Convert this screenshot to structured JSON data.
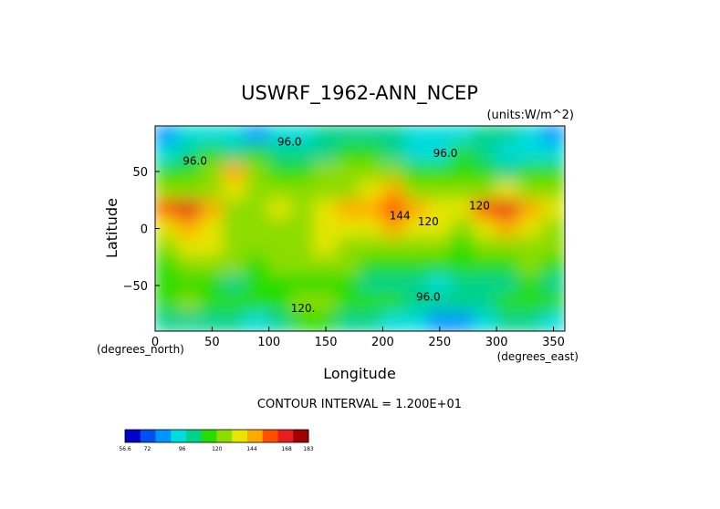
{
  "chart_data": {
    "type": "heatmap",
    "title": "USWRF_1962-ANN_NCEP",
    "units_label": "(units:W/m^2)",
    "xlabel": "Longitude",
    "ylabel": "Latitude",
    "x_unit_label": "(degrees_east)",
    "y_unit_label": "(degrees_north)",
    "xlim": [
      0,
      360
    ],
    "ylim": [
      -90,
      90
    ],
    "x_ticks": [
      0,
      50,
      100,
      150,
      200,
      250,
      300,
      350
    ],
    "y_ticks": [
      -50,
      0,
      50
    ],
    "contour_interval_text": "CONTOUR INTERVAL = 1.200E+01",
    "contour_labels": [
      {
        "text": "96.0",
        "lon": 118,
        "lat": 73
      },
      {
        "text": "96.0",
        "lon": 35,
        "lat": 56
      },
      {
        "text": "96.0",
        "lon": 255,
        "lat": 63
      },
      {
        "text": "120",
        "lon": 285,
        "lat": 17
      },
      {
        "text": "120",
        "lon": 240,
        "lat": 3
      },
      {
        "text": "144",
        "lon": 215,
        "lat": 8
      },
      {
        "text": "96.0",
        "lon": 240,
        "lat": -63
      },
      {
        "text": "120.",
        "lon": 130,
        "lat": -73
      }
    ],
    "colorbar": {
      "ticks": [
        "56.6",
        "72",
        "96",
        "120",
        "144",
        "168",
        "183"
      ],
      "tick_values": [
        56.6,
        72,
        96,
        120,
        144,
        168,
        183
      ],
      "colors": [
        "#0000c8",
        "#0050f0",
        "#0096ff",
        "#00dcdc",
        "#00d28c",
        "#28dc00",
        "#8cdc00",
        "#e6e600",
        "#ffaa00",
        "#ff5000",
        "#e61e1e",
        "#a00000"
      ]
    },
    "grid": [
      [
        86,
        90,
        95,
        92,
        88,
        98,
        95,
        100,
        108,
        104,
        100,
        96,
        90,
        95,
        102,
        100,
        92,
        88
      ],
      [
        96,
        104,
        110,
        106,
        115,
        108,
        100,
        108,
        112,
        110,
        106,
        96,
        94,
        110,
        104,
        98,
        92,
        94
      ],
      [
        110,
        118,
        122,
        150,
        126,
        118,
        114,
        120,
        124,
        122,
        126,
        112,
        110,
        118,
        112,
        108,
        112,
        116
      ],
      [
        120,
        126,
        130,
        134,
        128,
        124,
        122,
        126,
        130,
        134,
        142,
        124,
        120,
        128,
        124,
        132,
        126,
        122
      ],
      [
        160,
        172,
        146,
        130,
        126,
        132,
        128,
        136,
        144,
        150,
        158,
        150,
        138,
        140,
        152,
        166,
        142,
        138
      ],
      [
        140,
        150,
        136,
        130,
        128,
        126,
        130,
        134,
        138,
        140,
        142,
        136,
        132,
        128,
        140,
        150,
        134,
        130
      ],
      [
        128,
        132,
        134,
        128,
        126,
        124,
        128,
        132,
        130,
        128,
        126,
        124,
        120,
        118,
        124,
        128,
        126,
        124
      ],
      [
        118,
        122,
        124,
        120,
        118,
        122,
        126,
        124,
        120,
        116,
        114,
        116,
        112,
        110,
        114,
        118,
        120,
        116
      ],
      [
        110,
        114,
        112,
        108,
        110,
        112,
        116,
        114,
        112,
        108,
        104,
        100,
        96,
        100,
        104,
        108,
        110,
        106
      ],
      [
        116,
        120,
        118,
        114,
        116,
        118,
        120,
        122,
        118,
        116,
        110,
        104,
        100,
        102,
        106,
        112,
        114,
        112
      ],
      [
        100,
        108,
        104,
        100,
        98,
        104,
        110,
        112,
        108,
        104,
        98,
        92,
        86,
        88,
        94,
        100,
        102,
        98
      ]
    ],
    "grid_lat_rows": "north-to-south",
    "grid_lon_range": [
      0,
      360
    ]
  }
}
